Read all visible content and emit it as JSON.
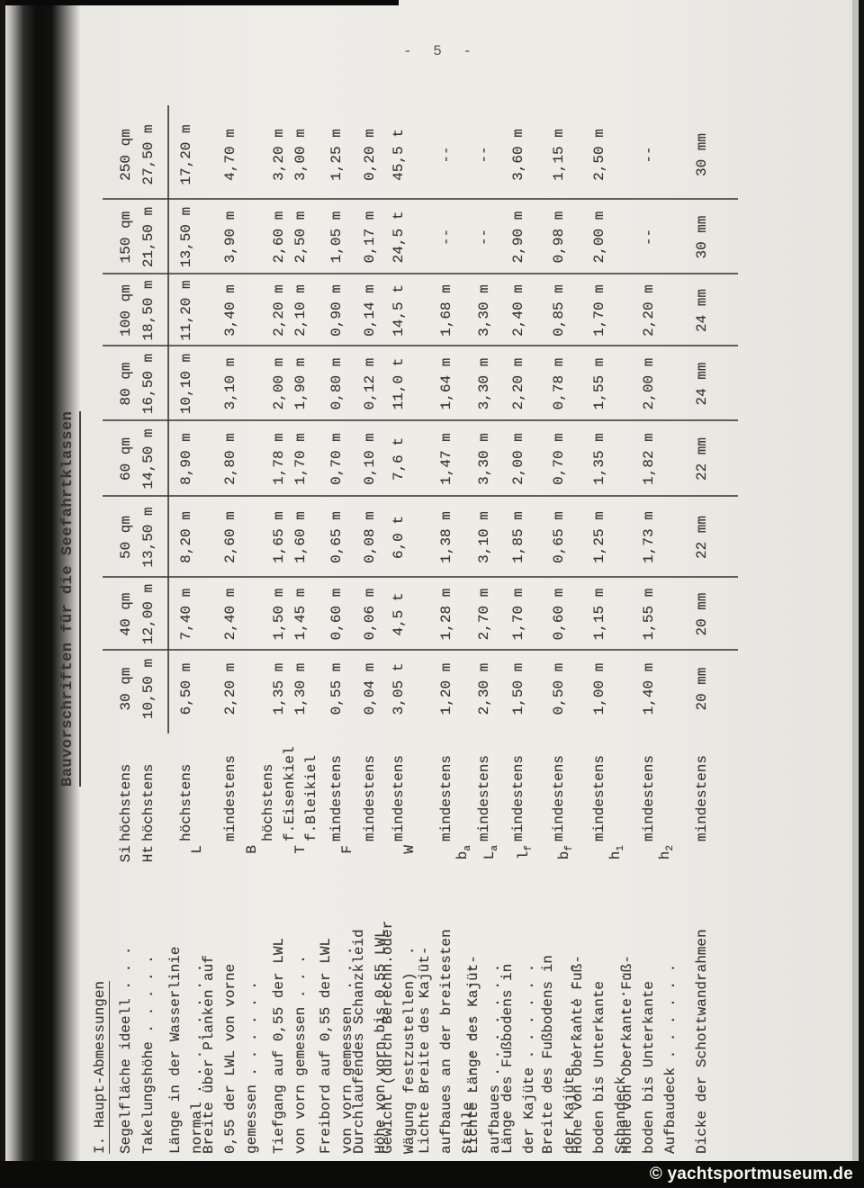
{
  "page": {
    "number_label": "- 5 -",
    "watermark": "© yachtsportmuseum.de"
  },
  "title": "Bauvorschriften für die Seefahrtklassen",
  "section_heading": "I. Haupt-Abmessungen",
  "colors": {
    "paper": "#edebe6",
    "ink": "#3a352f",
    "scan_edge": "#0b0b0a",
    "watermark_text": "#f6f6f5"
  },
  "table": {
    "classes": [
      "30 qm",
      "40 qm",
      "50 qm",
      "60 qm",
      "80 qm",
      "100 qm",
      "150 qm",
      "250 qm"
    ],
    "rows": [
      {
        "label_lines": [
          "Segelfläche ideell . . ."
        ],
        "symbol": "Si",
        "qualifier_lines": [
          "höchstens"
        ],
        "values": [
          "30  qm",
          "40  qm",
          "50  qm",
          "60  qm",
          "80  qm",
          "100 qm",
          "150 qm",
          "250 qm"
        ]
      },
      {
        "label_lines": [
          "Takelungshöhe . . . . ."
        ],
        "symbol": "Ht",
        "qualifier_lines": [
          "höchstens"
        ],
        "values": [
          "10,50 m",
          "12,00 m",
          "13,50 m",
          "14,50 m",
          "16,50 m",
          "18,50 m",
          "21,50 m",
          "27,50 m"
        ]
      },
      {
        "label_lines": [
          "Länge in der Wasserlinie",
          "normal . . . . . . . ."
        ],
        "symbol": "L",
        "qualifier_lines": [
          "höchstens"
        ],
        "values": [
          "6,50 m",
          "7,40 m",
          "8,20 m",
          "8,90 m",
          "10,10 m",
          "11,20 m",
          "13,50 m",
          "17,20 m"
        ]
      },
      {
        "label_lines": [
          "Breite über Planken auf",
          "0,55 der LWL von vorne",
          "gemessen . . . . . ."
        ],
        "symbol": "B",
        "qualifier_lines": [
          "mindestens"
        ],
        "values": [
          "2,20 m",
          "2,40 m",
          "2,60 m",
          "2,80 m",
          "3,10 m",
          "3,40 m",
          "3,90 m",
          "4,70 m"
        ]
      },
      {
        "label_lines": [
          "Tiefgang auf 0,55 der LWL",
          "von vorn gemessen . . ."
        ],
        "symbol": "T",
        "qualifier_lines": [
          "höchstens",
          "f.Eisenkiel",
          "f.Bleikiel"
        ],
        "values": [
          [
            "1,35 m",
            "1,30 m"
          ],
          [
            "1,50 m",
            "1,45 m"
          ],
          [
            "1,65 m",
            "1,60 m"
          ],
          [
            "1,78 m",
            "1,70 m"
          ],
          [
            "2,00 m",
            "1,90 m"
          ],
          [
            "2,20 m",
            "2,10 m"
          ],
          [
            "2,60 m",
            "2,50 m"
          ],
          [
            "3,20 m",
            "3,00 m"
          ]
        ]
      },
      {
        "label_lines": [
          "Freibord auf 0,55 der LWL",
          "von vorn gemessen  . . ."
        ],
        "symbol": "F",
        "qualifier_lines": [
          "mindestens"
        ],
        "values": [
          "0,55 m",
          "0,60 m",
          "0,65 m",
          "0,70 m",
          "0,80 m",
          "0,90 m",
          "1,05 m",
          "1,25 m"
        ]
      },
      {
        "label_lines": [
          "Durchlaufendes Schanzkleid",
          "Höhe von vorn bis 0,55 LWL"
        ],
        "symbol": "",
        "qualifier_lines": [
          "mindestens"
        ],
        "values": [
          "0,04 m",
          "0,06 m",
          "0,08 m",
          "0,10 m",
          "0,12 m",
          "0,14 m",
          "0,17 m",
          "0,20 m"
        ]
      },
      {
        "label_lines": [
          "Gewicht (durch Berechn.oder",
          "Wägung festzustellen)  ."
        ],
        "symbol": "W",
        "qualifier_lines": [
          "mindestens"
        ],
        "values": [
          "3,05 t",
          "4,5 t",
          "6,0 t",
          "7,6 t",
          "11,0 t",
          "14,5 t",
          "24,5 t",
          "45,5 t"
        ]
      },
      {
        "label_lines": [
          "Lichte Breite des Kajüt-",
          "aufbaues an der breitesten",
          "Stelle . . . . . . . ."
        ],
        "symbol": "b_a",
        "qualifier_lines": [
          "mindestens"
        ],
        "values": [
          "1,20 m",
          "1,28 m",
          "1,38 m",
          "1,47 m",
          "1,64 m",
          "1,68 m",
          "--",
          "--"
        ]
      },
      {
        "label_lines": [
          "Lichte Länge des Kajüt-",
          "aufbaues . . . . . . ."
        ],
        "symbol": "L_a",
        "qualifier_lines": [
          "mindestens"
        ],
        "values": [
          "2,30 m",
          "2,70 m",
          "3,10 m",
          "3,30 m",
          "3,30 m",
          "3,30 m",
          "--",
          "--"
        ]
      },
      {
        "label_lines": [
          "Länge des Fußbodens in",
          "der Kajüte . . . . . ."
        ],
        "symbol": "l_f",
        "qualifier_lines": [
          "mindestens"
        ],
        "values": [
          "1,50 m",
          "1,70 m",
          "1,85 m",
          "2,00 m",
          "2,20 m",
          "2,40 m",
          "2,90 m",
          "3,60 m"
        ]
      },
      {
        "label_lines": [
          "Breite des Fußbodens in",
          "der Kajüte . . . . . ."
        ],
        "symbol": "b_f",
        "qualifier_lines": [
          "mindestens"
        ],
        "values": [
          "0,50 m",
          "0,60 m",
          "0,65 m",
          "0,70 m",
          "0,78 m",
          "0,85 m",
          "0,98 m",
          "1,15 m"
        ]
      },
      {
        "label_lines": [
          "Höhe von Oberkante Fuß-",
          "boden bis Unterkante",
          "Schandeck . . . . . ."
        ],
        "symbol": "h_1",
        "qualifier_lines": [
          "mindestens"
        ],
        "values": [
          "1,00 m",
          "1,15 m",
          "1,25 m",
          "1,35 m",
          "1,55 m",
          "1,70 m",
          "2,00 m",
          "2,50 m"
        ]
      },
      {
        "label_lines": [
          "Höhe von Oberkante Fuß-",
          "boden bis Unterkante",
          "Aufbaudeck . . . . . ."
        ],
        "symbol": "h_2",
        "qualifier_lines": [
          "mindestens"
        ],
        "values": [
          "1,40 m",
          "1,55 m",
          "1,73 m",
          "1,82 m",
          "2,00 m",
          "2,20 m",
          "--",
          "--"
        ]
      },
      {
        "label_lines": [
          "Dicke der Schottwandrahmen"
        ],
        "symbol": "",
        "qualifier_lines": [
          "mindestens"
        ],
        "values": [
          "20 mm",
          "20 mm",
          "22 mm",
          "22 mm",
          "24 mm",
          "24 mm",
          "30 mm",
          "30 mm"
        ]
      }
    ]
  }
}
